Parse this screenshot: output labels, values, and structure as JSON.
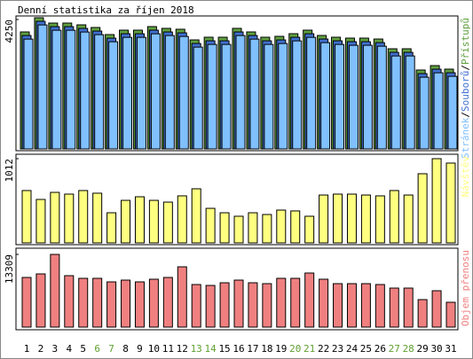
{
  "chart_data": [
    {
      "type": "bar3",
      "title": "Denní statistika za říjen 2018",
      "categories": [
        "1",
        "2",
        "3",
        "4",
        "5",
        "6",
        "7",
        "8",
        "9",
        "10",
        "11",
        "12",
        "13",
        "14",
        "15",
        "16",
        "17",
        "18",
        "19",
        "20",
        "21",
        "22",
        "23",
        "24",
        "25",
        "26",
        "27",
        "28",
        "29",
        "30",
        "31"
      ],
      "category_colors": [
        "#000000",
        "#000000",
        "#000000",
        "#000000",
        "#000000",
        "#60a030",
        "#60a030",
        "#000000",
        "#000000",
        "#000000",
        "#000000",
        "#000000",
        "#60a030",
        "#60a030",
        "#000000",
        "#000000",
        "#000000",
        "#000000",
        "#000000",
        "#60a030",
        "#60a030",
        "#000000",
        "#000000",
        "#000000",
        "#000000",
        "#000000",
        "#60a030",
        "#60a030",
        "#000000",
        "#000000",
        "#000000"
      ],
      "legend_separator": "/",
      "ylim": [
        0,
        4250
      ],
      "yticks": [
        4250
      ],
      "series": [
        {
          "name": "Stránek",
          "color": "#80c0ff",
          "values": [
            3664,
            4130,
            3955,
            3955,
            3897,
            3810,
            3577,
            3722,
            3722,
            3839,
            3781,
            3752,
            3402,
            3490,
            3490,
            3781,
            3664,
            3490,
            3519,
            3606,
            3722,
            3548,
            3490,
            3461,
            3461,
            3431,
            3111,
            3111,
            2413,
            2558,
            2442
          ]
        },
        {
          "name": "Souborů",
          "color": "#4070d0",
          "values": [
            3724,
            4190,
            4015,
            4015,
            3957,
            3870,
            3637,
            3782,
            3782,
            3899,
            3841,
            3812,
            3462,
            3550,
            3550,
            3841,
            3724,
            3550,
            3579,
            3666,
            3782,
            3608,
            3550,
            3521,
            3521,
            3491,
            3171,
            3171,
            2473,
            2618,
            2502
          ]
        },
        {
          "name": "Přístupů",
          "color": "#60a040",
          "values": [
            3784,
            4250,
            4075,
            4075,
            4017,
            3930,
            3697,
            3842,
            3842,
            3959,
            3901,
            3872,
            3522,
            3610,
            3610,
            3901,
            3784,
            3610,
            3639,
            3726,
            3842,
            3668,
            3610,
            3581,
            3581,
            3551,
            3231,
            3231,
            2533,
            2678,
            2562
          ]
        }
      ]
    },
    {
      "type": "bar",
      "ylim": [
        0,
        1012
      ],
      "yticks": [
        1012
      ],
      "series": [
        {
          "name": "Návštěv",
          "color": "#ffff80",
          "values": [
            629,
            522,
            607,
            586,
            629,
            597,
            362,
            511,
            554,
            511,
            490,
            565,
            650,
            415,
            362,
            320,
            362,
            341,
            394,
            384,
            320,
            575,
            586,
            586,
            575,
            565,
            629,
            575,
            831,
            1012,
            959
          ]
        }
      ]
    },
    {
      "type": "bar",
      "ylim": [
        0,
        13309
      ],
      "yticks": [
        13309
      ],
      "series": [
        {
          "name": "Objem přenosu",
          "color": "#f08080",
          "values": [
            9089,
            9738,
            13309,
            9414,
            8927,
            8927,
            8278,
            8602,
            8278,
            8764,
            9089,
            11037,
            7791,
            7628,
            8115,
            8602,
            8115,
            7953,
            8927,
            8927,
            9900,
            8764,
            7953,
            7953,
            7953,
            7791,
            7141,
            7141,
            5031,
            6655,
            4545
          ]
        }
      ]
    }
  ]
}
